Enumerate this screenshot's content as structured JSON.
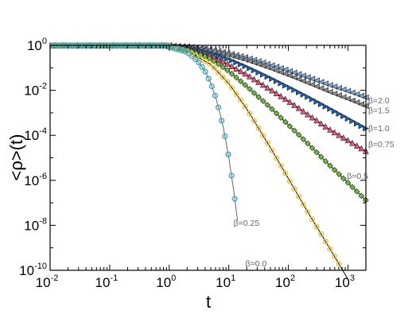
{
  "chart_data": {
    "type": "scatter",
    "xlabel": "t",
    "ylabel": "<ρ>(t)",
    "xscale": "log",
    "yscale": "log",
    "xlim": [
      0.01,
      2000
    ],
    "ylim": [
      1e-10,
      1
    ],
    "grid": false,
    "x_ticks": [
      {
        "value": 0.01,
        "base": "10",
        "exp": "-2"
      },
      {
        "value": 0.1,
        "base": "10",
        "exp": "-1"
      },
      {
        "value": 1,
        "base": "10",
        "exp": "0"
      },
      {
        "value": 10,
        "base": "10",
        "exp": "1"
      },
      {
        "value": 100,
        "base": "10",
        "exp": "2"
      },
      {
        "value": 1000,
        "base": "10",
        "exp": "3"
      }
    ],
    "y_ticks": [
      {
        "value": 1,
        "base": "10",
        "exp": "0"
      },
      {
        "value": 0.01,
        "base": "10",
        "exp": "-2"
      },
      {
        "value": 0.0001,
        "base": "10",
        "exp": "-4"
      },
      {
        "value": 1e-06,
        "base": "10",
        "exp": "-6"
      },
      {
        "value": 1e-08,
        "base": "10",
        "exp": "-8"
      },
      {
        "value": 1e-10,
        "base": "10",
        "exp": "-10"
      }
    ],
    "series": [
      {
        "name": "β=2.0",
        "color": "#7aa6d8",
        "marker": "triangle-left",
        "label_at": [
          2000,
          0.0037
        ],
        "points": [
          [
            1,
            0.96
          ],
          [
            2,
            0.88
          ],
          [
            5,
            0.64
          ],
          [
            10,
            0.44
          ],
          [
            20,
            0.28
          ],
          [
            50,
            0.135
          ],
          [
            100,
            0.075
          ],
          [
            200,
            0.04
          ],
          [
            500,
            0.017
          ],
          [
            1000,
            0.0093
          ],
          [
            2000,
            0.0048
          ]
        ]
      },
      {
        "name": "β=1.5",
        "color": "#8a8a8a",
        "marker": "triangle-left",
        "label_at": [
          2000,
          0.0013
        ],
        "points": [
          [
            1,
            0.94
          ],
          [
            2,
            0.83
          ],
          [
            5,
            0.56
          ],
          [
            10,
            0.37
          ],
          [
            20,
            0.22
          ],
          [
            50,
            0.095
          ],
          [
            100,
            0.048
          ],
          [
            200,
            0.023
          ],
          [
            500,
            0.0085
          ],
          [
            1000,
            0.0042
          ],
          [
            2000,
            0.002
          ]
        ]
      },
      {
        "name": "β=1.0",
        "color": "#1f5fa8",
        "marker": "triangle-right",
        "label_at": [
          2000,
          0.00021
        ],
        "points": [
          [
            1,
            0.93
          ],
          [
            2,
            0.78
          ],
          [
            5,
            0.45
          ],
          [
            10,
            0.24
          ],
          [
            20,
            0.11
          ],
          [
            50,
            0.035
          ],
          [
            100,
            0.014
          ],
          [
            200,
            0.0055
          ],
          [
            500,
            0.0015
          ],
          [
            1000,
            0.00055
          ],
          [
            2000,
            0.0002
          ]
        ]
      },
      {
        "name": "β=0.75",
        "color": "#e8557a",
        "marker": "triangle-up",
        "label_at": [
          2000,
          4.1e-05
        ],
        "points": [
          [
            1,
            0.92
          ],
          [
            2,
            0.72
          ],
          [
            5,
            0.35
          ],
          [
            10,
            0.14
          ],
          [
            20,
            0.05
          ],
          [
            50,
            0.011
          ],
          [
            100,
            0.0034
          ],
          [
            200,
            0.00095
          ],
          [
            500,
            0.00018
          ],
          [
            1000,
            6e-05
          ],
          [
            2000,
            2e-05
          ]
        ]
      },
      {
        "name": "β=0.5",
        "color": "#6cbf3a",
        "marker": "diamond",
        "label_at": [
          2000,
          1.6e-06
        ],
        "points": [
          [
            1,
            0.9
          ],
          [
            2,
            0.65
          ],
          [
            5,
            0.25
          ],
          [
            10,
            0.07
          ],
          [
            20,
            0.015
          ],
          [
            50,
            0.0017
          ],
          [
            100,
            0.00029
          ],
          [
            200,
            5e-05
          ],
          [
            500,
            4.5e-06
          ],
          [
            1000,
            7.8e-07
          ],
          [
            2000,
            1.3e-07
          ]
        ]
      },
      {
        "name": "β=0.25",
        "color": "#f2c12e",
        "marker": "circle",
        "label_at": [
          12,
          1.3e-08
        ],
        "points": [
          [
            1,
            0.88
          ],
          [
            2,
            0.55
          ],
          [
            5,
            0.14
          ],
          [
            10,
            0.02
          ],
          [
            20,
            0.0015
          ],
          [
            50,
            2.8e-05
          ],
          [
            100,
            1.2e-06
          ],
          [
            200,
            5e-08
          ],
          [
            500,
            9e-10
          ],
          [
            1000,
            4e-11
          ]
        ]
      },
      {
        "name": "β=0.0",
        "color": "#3aa6c8",
        "marker": "circle",
        "label_at": [
          19,
          2.1e-10
        ],
        "points": [
          [
            1,
            0.85
          ],
          [
            2,
            0.5
          ],
          [
            3,
            0.2
          ],
          [
            4,
            0.07
          ],
          [
            5,
            0.02
          ],
          [
            6,
            0.005
          ],
          [
            7,
            0.0011
          ],
          [
            8,
            0.00025
          ],
          [
            9,
            5e-05
          ],
          [
            10,
            1e-05
          ],
          [
            12,
            4e-07
          ],
          [
            14,
            1.7e-08
          ]
        ]
      }
    ]
  }
}
